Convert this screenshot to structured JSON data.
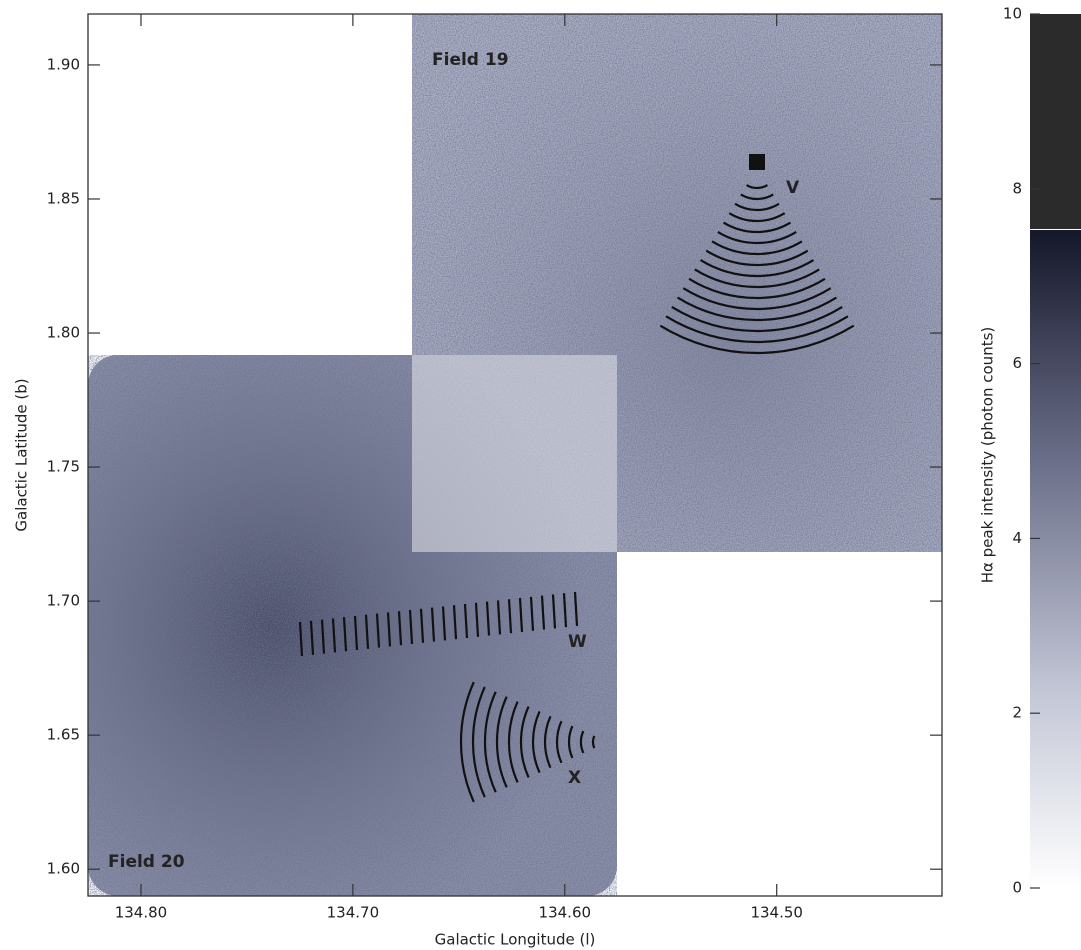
{
  "chart_data": {
    "type": "image",
    "x_label": "Galactic Longitude (l)",
    "y_label": "Galactic Latitude (b)",
    "xlim": [
      134.825,
      134.422
    ],
    "ylim": [
      1.59,
      1.919
    ],
    "xticks": [
      {
        "value": 134.8,
        "label": "134.80"
      },
      {
        "value": 134.7,
        "label": "134.70"
      },
      {
        "value": 134.6,
        "label": "134.60"
      },
      {
        "value": 134.5,
        "label": "134.50"
      }
    ],
    "yticks": [
      {
        "value": 1.6,
        "label": "1.60"
      },
      1.65,
      {
        "value": 1.7,
        "label": "1.70"
      },
      1.75,
      {
        "value": 1.8,
        "label": "1.80"
      },
      1.85,
      {
        "value": 1.9,
        "label": "1.90"
      }
    ],
    "annotations": [
      "Field 19",
      "Field 20",
      "V",
      "W",
      "X"
    ],
    "colorbar": {
      "label": "Hα peak intensity (photon counts)",
      "lim": [
        0,
        10
      ],
      "ticks": [
        0,
        2,
        4,
        6,
        8,
        10
      ]
    }
  }
}
